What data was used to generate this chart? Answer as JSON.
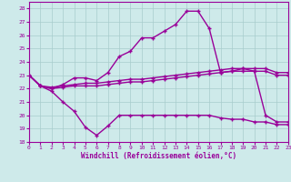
{
  "x": [
    0,
    1,
    2,
    3,
    4,
    5,
    6,
    7,
    8,
    9,
    10,
    11,
    12,
    13,
    14,
    15,
    16,
    17,
    18,
    19,
    20,
    21,
    22,
    23
  ],
  "line_peak": [
    23.0,
    22.2,
    22.0,
    22.3,
    22.8,
    22.8,
    22.6,
    23.2,
    24.4,
    24.8,
    25.8,
    25.8,
    26.3,
    26.8,
    27.8,
    27.8,
    26.5,
    23.2,
    23.3,
    23.5,
    23.3,
    20.0,
    19.5,
    19.5
  ],
  "line_flat_hi": [
    23.0,
    22.2,
    22.1,
    22.2,
    22.3,
    22.4,
    22.4,
    22.5,
    22.6,
    22.7,
    22.7,
    22.8,
    22.9,
    23.0,
    23.1,
    23.2,
    23.3,
    23.4,
    23.5,
    23.5,
    23.5,
    23.5,
    23.2,
    23.2
  ],
  "line_flat_lo": [
    23.0,
    22.2,
    22.0,
    22.1,
    22.2,
    22.2,
    22.2,
    22.3,
    22.4,
    22.5,
    22.5,
    22.6,
    22.7,
    22.8,
    22.9,
    23.0,
    23.1,
    23.2,
    23.3,
    23.3,
    23.3,
    23.3,
    23.0,
    23.0
  ],
  "line_low": [
    23.0,
    22.2,
    21.8,
    21.0,
    20.3,
    19.1,
    18.5,
    19.2,
    20.0,
    20.0,
    20.0,
    20.0,
    20.0,
    20.0,
    20.0,
    20.0,
    20.0,
    19.8,
    19.7,
    19.7,
    19.5,
    19.5,
    19.3,
    19.3
  ],
  "color": "#990099",
  "bg_color": "#ceeaea",
  "grid_color": "#a8cccc",
  "xlabel": "Windchill (Refroidissement éolien,°C)",
  "ylim": [
    18,
    28.5
  ],
  "xlim": [
    0,
    23
  ],
  "yticks": [
    18,
    19,
    20,
    21,
    22,
    23,
    24,
    25,
    26,
    27,
    28
  ],
  "xticks": [
    0,
    1,
    2,
    3,
    4,
    5,
    6,
    7,
    8,
    9,
    10,
    11,
    12,
    13,
    14,
    15,
    16,
    17,
    18,
    19,
    20,
    21,
    22,
    23
  ]
}
